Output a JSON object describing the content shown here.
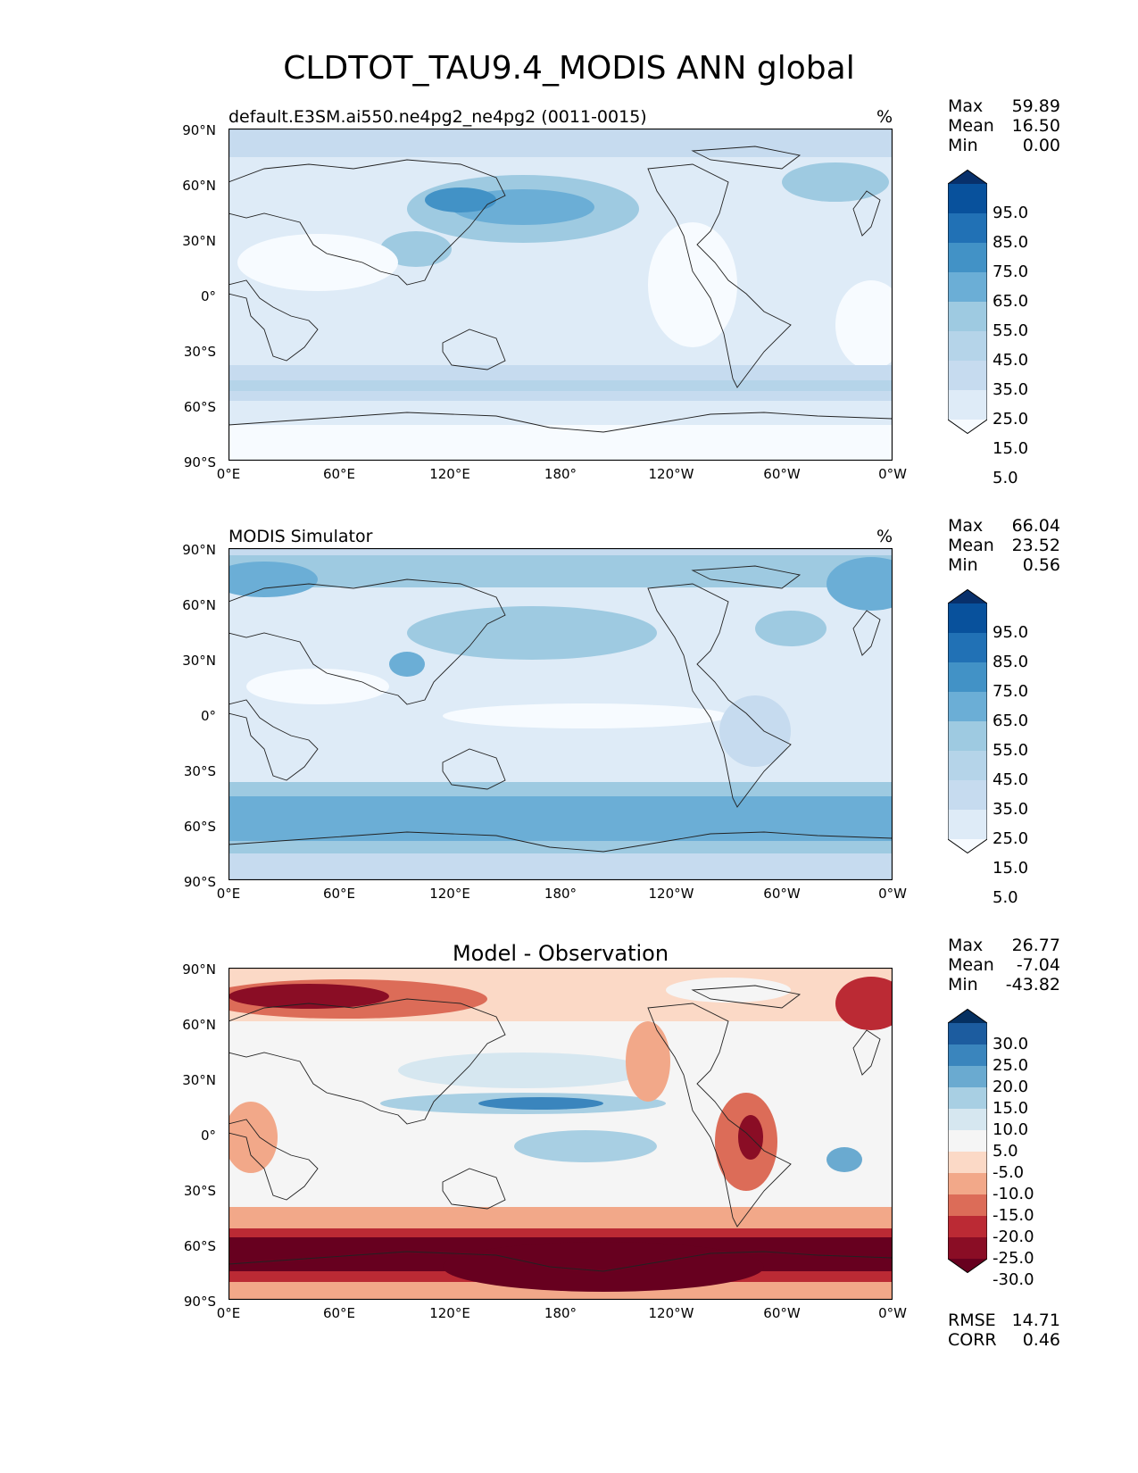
{
  "figure_title": "CLDTOT_TAU9.4_MODIS ANN global",
  "axes": {
    "y_ticks": [
      "90°N",
      "60°N",
      "30°N",
      "0°",
      "30°S",
      "60°S",
      "90°S"
    ],
    "x_ticks": [
      "0°E",
      "60°E",
      "120°E",
      "180°",
      "120°W",
      "60°W",
      "0°W"
    ]
  },
  "panels": [
    {
      "id": "model",
      "title": "default.E3SM.ai550.ne4pg2_ne4pg2 (0011-0015)",
      "unit": "%",
      "stats": {
        "max_label": "Max",
        "max": "59.89",
        "mean_label": "Mean",
        "mean": "16.50",
        "min_label": "Min",
        "min": "0.00"
      },
      "colorbar_labels": [
        "95.0",
        "85.0",
        "75.0",
        "65.0",
        "55.0",
        "45.0",
        "35.0",
        "25.0",
        "15.0",
        "5.0"
      ],
      "colorbar_colors": [
        "#08306b",
        "#08519c",
        "#2171b5",
        "#4292c6",
        "#6baed6",
        "#9ecae1",
        "#b5d4e9",
        "#c6dbef",
        "#deebf7",
        "#f7fbff"
      ]
    },
    {
      "id": "obs",
      "title": "MODIS Simulator",
      "unit": "%",
      "stats": {
        "max_label": "Max",
        "max": "66.04",
        "mean_label": "Mean",
        "mean": "23.52",
        "min_label": "Min",
        "min": "0.56"
      },
      "colorbar_labels": [
        "95.0",
        "85.0",
        "75.0",
        "65.0",
        "55.0",
        "45.0",
        "35.0",
        "25.0",
        "15.0",
        "5.0"
      ],
      "colorbar_colors": [
        "#08306b",
        "#08519c",
        "#2171b5",
        "#4292c6",
        "#6baed6",
        "#9ecae1",
        "#b5d4e9",
        "#c6dbef",
        "#deebf7",
        "#f7fbff"
      ]
    },
    {
      "id": "diff",
      "title": "Model - Observation",
      "unit": "",
      "stats": {
        "max_label": "Max",
        "max": "26.77",
        "mean_label": "Mean",
        "mean": "-7.04",
        "min_label": "Min",
        "min": "-43.82"
      },
      "colorbar_labels": [
        "30.0",
        "25.0",
        "20.0",
        "15.0",
        "10.0",
        "5.0",
        "-5.0",
        "-10.0",
        "-15.0",
        "-20.0",
        "-25.0",
        "-30.0"
      ],
      "colorbar_colors": [
        "#053061",
        "#1c5c9f",
        "#3a85bd",
        "#6aaad0",
        "#a8cfe3",
        "#d6e7f0",
        "#f5f5f5",
        "#fbd9c6",
        "#f2a889",
        "#dc6c58",
        "#bb2a34",
        "#8a0d25",
        "#67001f"
      ],
      "metrics": {
        "rmse_label": "RMSE",
        "rmse": "14.71",
        "corr_label": "CORR",
        "corr": "0.46"
      }
    }
  ]
}
